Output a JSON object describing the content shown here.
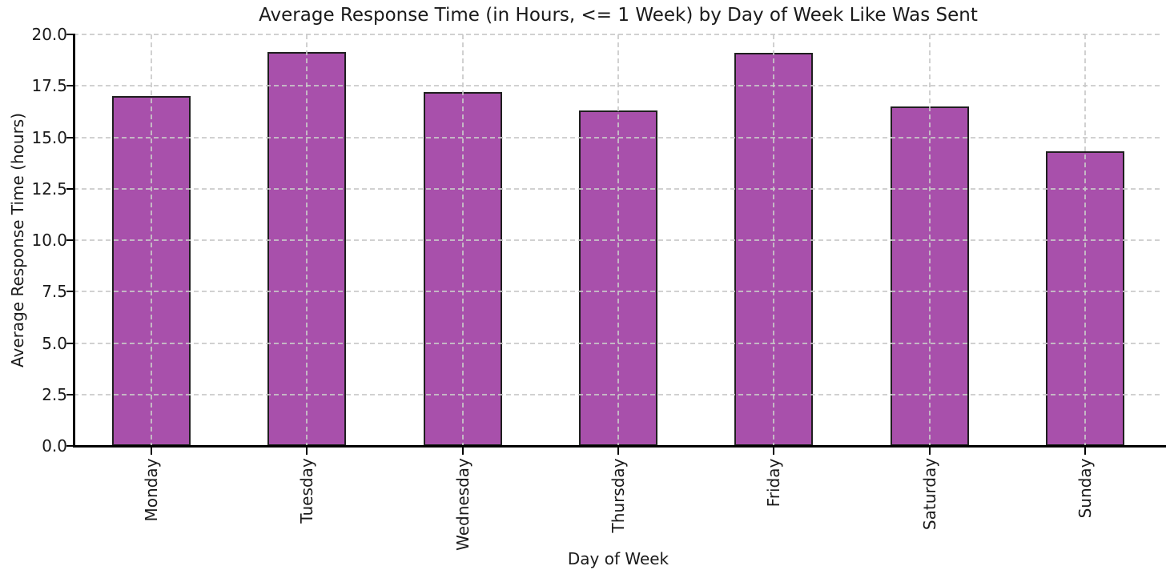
{
  "chart_data": {
    "type": "bar",
    "title": "Average Response Time (in Hours, <= 1 Week) by Day of Week Like Was Sent",
    "xlabel": "Day of Week",
    "ylabel": "Average Response Time (hours)",
    "categories": [
      "Monday",
      "Tuesday",
      "Wednesday",
      "Thursday",
      "Friday",
      "Saturday",
      "Sunday"
    ],
    "values": [
      17.0,
      19.15,
      17.2,
      16.3,
      19.1,
      16.5,
      14.3
    ],
    "ylim": [
      0,
      20
    ],
    "yticks": [
      0.0,
      2.5,
      5.0,
      7.5,
      10.0,
      12.5,
      15.0,
      17.5,
      20.0
    ],
    "ytick_labels": [
      "0.0",
      "2.5",
      "5.0",
      "7.5",
      "10.0",
      "12.5",
      "15.0",
      "17.5",
      "20.0"
    ],
    "xtick_rotation": 90,
    "grid": true,
    "grid_style": "dashed",
    "legend": "none",
    "colors": {
      "bar_fill": "#a850ab",
      "bar_edge": "#1f1f1f",
      "grid": "#c9c9c9",
      "axis": "#000000",
      "background": "#ffffff",
      "text": "#1a1a1a"
    }
  }
}
